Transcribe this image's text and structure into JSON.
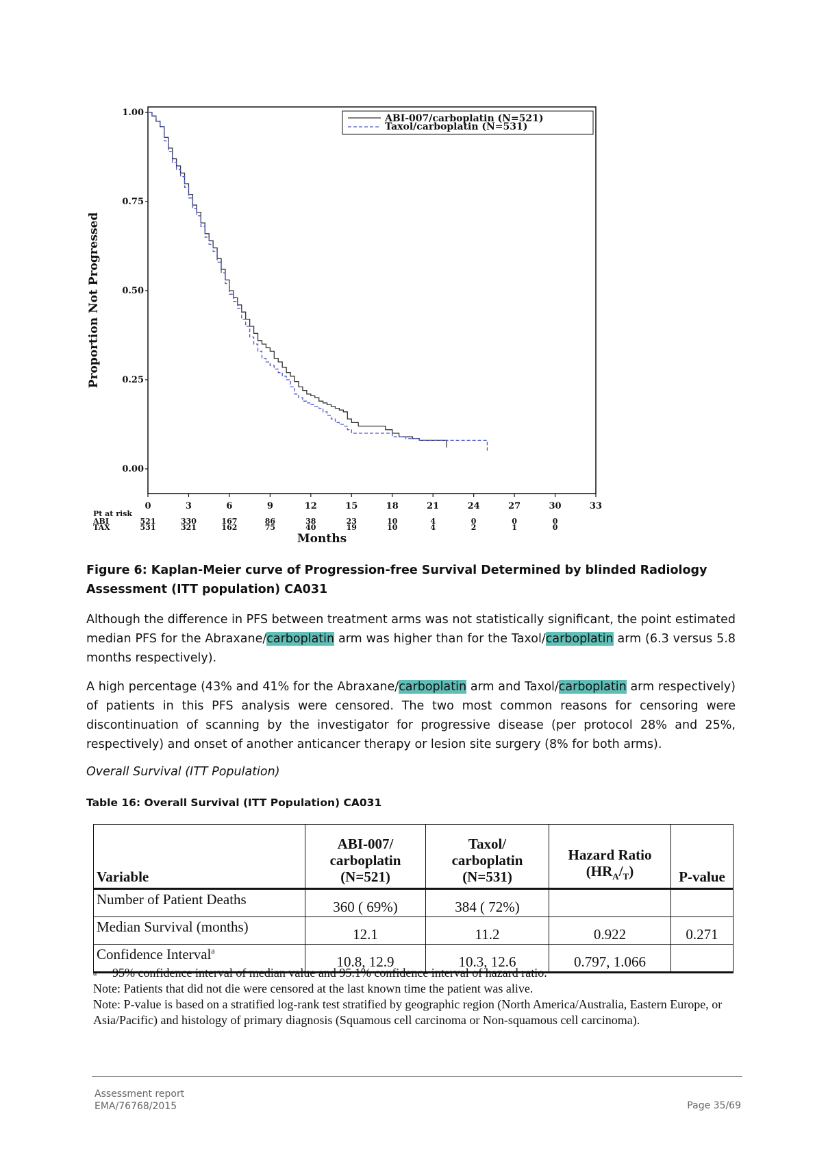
{
  "figure": {
    "y_axis_title": "Proportion Not Progressed",
    "x_axis_title": "Months",
    "risk_header": "Pt at risk",
    "caption": "Figure 6: Kaplan-Meier curve of Progression-free Survival Determined by blinded Radiology Assessment (ITT population) CA031"
  },
  "chart_data": {
    "type": "line",
    "step": true,
    "xlabel": "Months",
    "ylabel": "Proportion Not Progressed",
    "xlim": [
      0,
      33
    ],
    "ylim": [
      0,
      1
    ],
    "x_ticks": [
      "0",
      "3",
      "6",
      "9",
      "12",
      "15",
      "18",
      "21",
      "24",
      "27",
      "30",
      "33"
    ],
    "y_ticks": [
      "0.00",
      "0.25",
      "0.50",
      "0.75",
      "1.00"
    ],
    "grid": false,
    "legend_position": "top-right",
    "colors": {
      "abi": "#333333",
      "tax": "#4a57c8"
    },
    "series": [
      {
        "name": "ABI-007/carboplatin (N=521)",
        "style": "solid",
        "x": [
          0,
          0.3,
          0.6,
          0.9,
          1.2,
          1.5,
          1.8,
          2.1,
          2.4,
          2.7,
          3.0,
          3.3,
          3.6,
          3.9,
          4.2,
          4.5,
          4.8,
          5.1,
          5.4,
          5.7,
          6.0,
          6.3,
          6.6,
          6.9,
          7.2,
          7.5,
          7.8,
          8.1,
          8.4,
          8.7,
          9.0,
          9.3,
          9.6,
          9.9,
          10.2,
          10.5,
          10.8,
          11.1,
          11.4,
          11.7,
          12.0,
          12.3,
          12.6,
          12.9,
          13.2,
          13.5,
          13.8,
          14.1,
          14.4,
          14.7,
          15.0,
          15.5,
          16.0,
          16.5,
          17.0,
          17.5,
          18.0,
          18.5,
          19.0,
          19.5,
          20.0,
          21.0,
          22.0,
          22.0
        ],
        "y": [
          1.0,
          0.99,
          0.975,
          0.96,
          0.93,
          0.9,
          0.87,
          0.85,
          0.83,
          0.8,
          0.77,
          0.74,
          0.72,
          0.69,
          0.66,
          0.64,
          0.62,
          0.59,
          0.56,
          0.53,
          0.5,
          0.48,
          0.46,
          0.44,
          0.42,
          0.4,
          0.38,
          0.36,
          0.35,
          0.34,
          0.33,
          0.31,
          0.3,
          0.285,
          0.27,
          0.26,
          0.245,
          0.23,
          0.22,
          0.21,
          0.205,
          0.2,
          0.19,
          0.185,
          0.18,
          0.175,
          0.17,
          0.165,
          0.16,
          0.14,
          0.13,
          0.12,
          0.12,
          0.12,
          0.12,
          0.11,
          0.1,
          0.09,
          0.09,
          0.085,
          0.08,
          0.08,
          0.08,
          0.06
        ]
      },
      {
        "name": "Taxol/carboplatin (N=531)",
        "style": "dashed",
        "x": [
          0,
          0.3,
          0.6,
          0.9,
          1.2,
          1.5,
          1.8,
          2.1,
          2.4,
          2.7,
          3.0,
          3.3,
          3.6,
          3.9,
          4.2,
          4.5,
          4.8,
          5.1,
          5.4,
          5.7,
          6.0,
          6.3,
          6.6,
          6.9,
          7.2,
          7.5,
          7.8,
          8.1,
          8.4,
          8.7,
          9.0,
          9.3,
          9.6,
          9.9,
          10.2,
          10.5,
          10.8,
          11.1,
          11.4,
          11.7,
          12.0,
          12.3,
          12.6,
          12.9,
          13.2,
          13.5,
          13.8,
          14.1,
          14.4,
          14.7,
          15.0,
          15.5,
          16.0,
          16.5,
          17.0,
          17.5,
          18.0,
          18.5,
          19.0,
          20.0,
          21.0,
          22.0,
          23.0,
          24.0,
          25.0,
          25.0
        ],
        "y": [
          1.0,
          0.99,
          0.975,
          0.96,
          0.92,
          0.89,
          0.86,
          0.84,
          0.82,
          0.79,
          0.76,
          0.73,
          0.71,
          0.68,
          0.65,
          0.63,
          0.61,
          0.58,
          0.55,
          0.52,
          0.49,
          0.47,
          0.45,
          0.42,
          0.4,
          0.37,
          0.35,
          0.33,
          0.31,
          0.3,
          0.29,
          0.28,
          0.27,
          0.26,
          0.25,
          0.23,
          0.21,
          0.2,
          0.19,
          0.185,
          0.18,
          0.175,
          0.17,
          0.16,
          0.15,
          0.14,
          0.13,
          0.125,
          0.12,
          0.11,
          0.1,
          0.1,
          0.1,
          0.1,
          0.1,
          0.1,
          0.09,
          0.09,
          0.085,
          0.08,
          0.08,
          0.08,
          0.08,
          0.08,
          0.08,
          0.05
        ]
      }
    ],
    "at_risk": {
      "rows": [
        "ABI",
        "TAX"
      ],
      "abi": [
        "521",
        "330",
        "167",
        "86",
        "38",
        "23",
        "10",
        "4",
        "0",
        "0",
        "0"
      ],
      "tax": [
        "531",
        "321",
        "162",
        "75",
        "40",
        "19",
        "10",
        "4",
        "2",
        "1",
        "0"
      ]
    }
  },
  "paragraphs": {
    "p1": [
      "Although the difference in PFS between treatment arms was not statistically significant, the point estimated median PFS for the Abraxane/",
      "carboplatin",
      " arm was higher than for the Taxol/",
      "carboplatin",
      " arm (6.3 versus 5.8 months respectively)."
    ],
    "p2": [
      "A high percentage (43% and 41% for the Abraxane/",
      "carboplatin",
      " arm and Taxol/",
      "carboplatin",
      " arm respectively) of patients in this PFS analysis were censored. The two most common reasons for censoring were discontinuation of scanning by the investigator for progressive disease (per protocol 28% and 25%, respectively) and onset of another  anticancer therapy or lesion site surgery (8% for both arms)."
    ]
  },
  "subheading": "Overall Survival (ITT Population)",
  "table": {
    "caption": "Table 16: Overall Survival (ITT Population) CA031",
    "headers": {
      "variable": "Variable",
      "abi": [
        "ABI-007/",
        "carboplatin",
        "(N=521)"
      ],
      "tax": [
        "Taxol/",
        "carboplatin",
        "(N=531)"
      ],
      "hr": [
        "Hazard Ratio",
        "(HR",
        "A",
        "/",
        "T",
        ")"
      ],
      "p": "P-value"
    },
    "rows": [
      {
        "label": "Number of Patient Deaths",
        "abi": "360 ( 69%)",
        "tax": "384 ( 72%)",
        "hr": "",
        "p": ""
      },
      {
        "label": "Median Survival (months)",
        "abi": "12.1",
        "tax": "11.2",
        "hr": "0.922",
        "p": "0.271"
      },
      {
        "label": "Confidence Interval",
        "label_sup": "a",
        "abi": "10.8, 12.9",
        "tax": "10.3, 12.6",
        "hr": "0.797, 1.066",
        "p": ""
      }
    ],
    "footnote_marker": "a",
    "footnote": "95% confidence interval of median value and 95.1% confidence interval of hazard ratio.",
    "note1": "Note: Patients that did not die were censored at the last known time the patient was alive.",
    "note2": "Note: P-value is based on a stratified log-rank test stratified by geographic region (North America/Australia, Eastern Europe, or Asia/Pacific) and histology of primary diagnosis (Squamous cell carcinoma or Non-squamous cell carcinoma)."
  },
  "footer": {
    "line1": "Assessment report",
    "line2": "EMA/76768/2015",
    "page": "Page 35/69"
  }
}
